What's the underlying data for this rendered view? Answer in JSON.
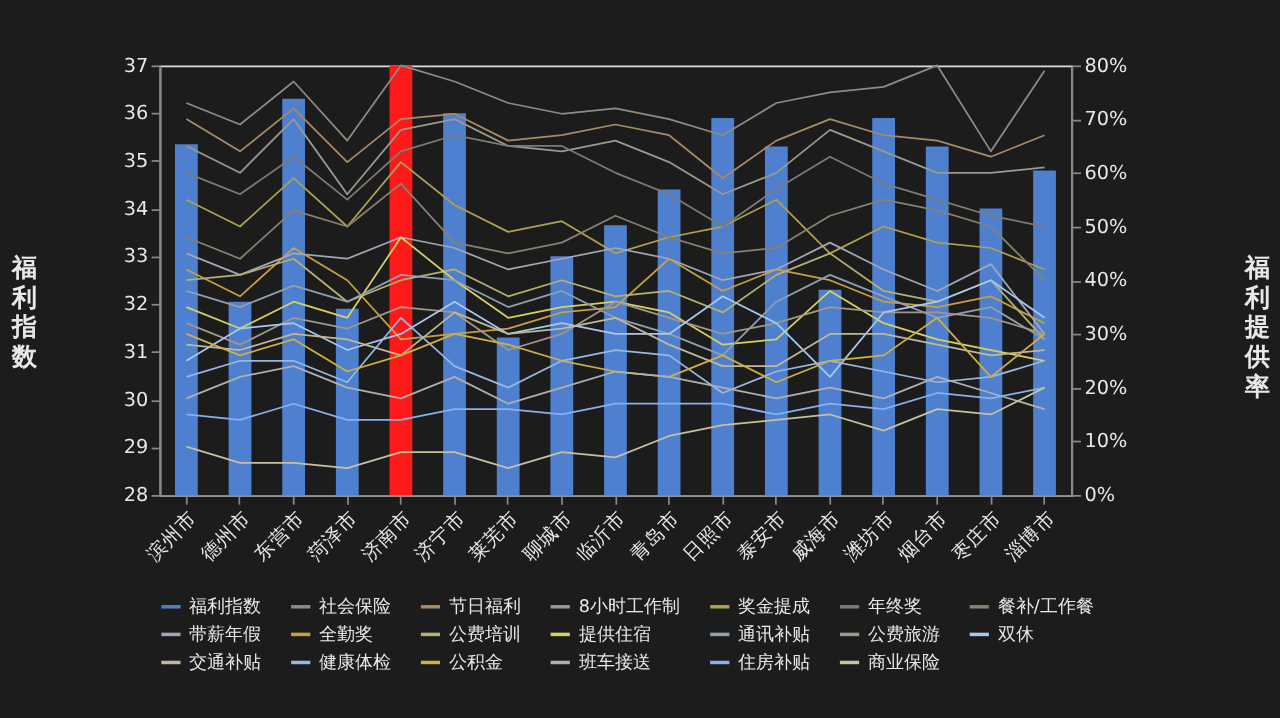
{
  "chart_data": {
    "type": "bar",
    "ylabel": "福利指数",
    "y2label": "福利提供率",
    "categories": [
      "滨州市",
      "德州市",
      "东营市",
      "菏泽市",
      "济南市",
      "济宁市",
      "莱芜市",
      "聊城市",
      "临沂市",
      "青岛市",
      "日照市",
      "泰安市",
      "威海市",
      "潍坊市",
      "烟台市",
      "枣庄市",
      "淄博市"
    ],
    "ylim": [
      28,
      37
    ],
    "yticks": [
      28,
      29,
      30,
      31,
      32,
      33,
      34,
      35,
      36,
      37
    ],
    "y2lim": [
      0,
      80
    ],
    "y2ticks": [
      {
        "value": 0,
        "label": "0%"
      },
      {
        "value": 10,
        "label": "10%"
      },
      {
        "value": 20,
        "label": "20%"
      },
      {
        "value": 30,
        "label": "30%"
      },
      {
        "value": 40,
        "label": "40%"
      },
      {
        "value": 50,
        "label": "50%"
      },
      {
        "value": 60,
        "label": "60%"
      },
      {
        "value": 70,
        "label": "70%"
      },
      {
        "value": 80,
        "label": "80%"
      }
    ],
    "legend": "bottom",
    "marker": "none",
    "line_style": "solid",
    "series": [
      {
        "name": "福利指数",
        "color": "#4f7fcf",
        "colors": [
          "#4f7fcf",
          "#4f7fcf",
          "#4f7fcf",
          "#4f7fcf",
          "#ff1a1a",
          "#4f7fcf",
          "#4f7fcf",
          "#4f7fcf",
          "#4f7fcf",
          "#4f7fcf",
          "#4f7fcf",
          "#4f7fcf",
          "#4f7fcf",
          "#4f7fcf",
          "#4f7fcf",
          "#4f7fcf",
          "#4f7fcf"
        ],
        "values": [
          35.35,
          32.05,
          36.3,
          31.9,
          37,
          36.0,
          31.3,
          33.0,
          33.65,
          34.4,
          35.9,
          35.3,
          32.3,
          35.9,
          35.3,
          34.0,
          34.8
        ]
      },
      {
        "name": "社会保险",
        "type": "line",
        "axis": "y2",
        "color": "#8c8c80",
        "values": [
          73,
          69,
          77,
          66,
          80,
          77,
          73,
          71,
          72,
          70,
          67,
          73,
          75,
          76,
          80,
          64,
          79
        ]
      },
      {
        "name": "节日福利",
        "type": "line",
        "axis": "y2",
        "color": "#a88a68",
        "values": [
          70,
          64,
          72,
          62,
          70,
          71,
          66,
          67,
          69,
          67,
          59,
          66,
          70,
          67,
          66,
          63,
          67
        ]
      },
      {
        "name": "8小时工作制",
        "type": "line",
        "axis": "y2",
        "color": "#9a9a90",
        "values": [
          65,
          60,
          70,
          56,
          68,
          70,
          65,
          64,
          66,
          62,
          56,
          60,
          68,
          64,
          60,
          60,
          61
        ]
      },
      {
        "name": "奖金提成",
        "type": "line",
        "axis": "y2",
        "color": "#b0a050",
        "values": [
          55,
          50,
          59,
          50,
          62,
          54,
          49,
          51,
          45,
          48,
          50,
          55,
          45,
          50,
          47,
          46,
          42
        ]
      },
      {
        "name": "年终奖",
        "type": "line",
        "axis": "y2",
        "color": "#7c7c74",
        "values": [
          60,
          56,
          63,
          55,
          64,
          67,
          65,
          65,
          60,
          56,
          50,
          57,
          63,
          58,
          55,
          52,
          50
        ]
      },
      {
        "name": "餐补/工作餐",
        "type": "line",
        "axis": "y2",
        "color": "#8a8070",
        "values": [
          48,
          44,
          53,
          50,
          58,
          47,
          45,
          47,
          52,
          48,
          45,
          46,
          52,
          55,
          53,
          50,
          40
        ]
      },
      {
        "name": "带薪年假",
        "type": "line",
        "axis": "y2",
        "color": "#a0a8b8",
        "values": [
          45,
          41,
          45,
          44,
          48,
          46,
          42,
          44,
          46,
          44,
          40,
          42,
          47,
          42,
          38,
          43,
          30
        ]
      },
      {
        "name": "全勤奖",
        "type": "line",
        "axis": "y2",
        "color": "#c8a040",
        "values": [
          42,
          37,
          46,
          40,
          29,
          30,
          31,
          34,
          35,
          44,
          38,
          42,
          40,
          36,
          35,
          37,
          32
        ]
      },
      {
        "name": "公费培训",
        "type": "line",
        "axis": "y2",
        "color": "#b8b070",
        "values": [
          40,
          41,
          44,
          36,
          40,
          42,
          37,
          40,
          37,
          38,
          34,
          41,
          45,
          38,
          36,
          40,
          29
        ]
      },
      {
        "name": "提供住宿",
        "type": "line",
        "axis": "y2",
        "color": "#d8d060",
        "values": [
          35,
          31,
          36,
          33,
          48,
          40,
          33,
          35,
          36,
          34,
          28,
          29,
          38,
          32,
          29,
          27,
          25
        ]
      },
      {
        "name": "通讯补贴",
        "type": "line",
        "axis": "y2",
        "color": "#90a0b0",
        "values": [
          38,
          35,
          39,
          36,
          41,
          40,
          35,
          38,
          33,
          30,
          26,
          36,
          41,
          37,
          33,
          35,
          29
        ]
      },
      {
        "name": "公费旅游",
        "type": "line",
        "axis": "y2",
        "color": "#a09888",
        "values": [
          32,
          28,
          33,
          31,
          35,
          34,
          27,
          30,
          36,
          33,
          30,
          32,
          35,
          34,
          34,
          33,
          30
        ]
      },
      {
        "name": "双休",
        "type": "line",
        "axis": "y2",
        "color": "#a8c8f0",
        "values": [
          25,
          31,
          32,
          27,
          30,
          36,
          30,
          32,
          30,
          30,
          37,
          32,
          22,
          34,
          36,
          40,
          33
        ]
      },
      {
        "name": "交通补贴",
        "type": "line",
        "axis": "y2",
        "color": "#c0b898",
        "values": [
          28,
          27,
          30,
          29,
          26,
          34,
          30,
          31,
          33,
          28,
          24,
          24,
          30,
          30,
          28,
          26,
          27
        ]
      },
      {
        "name": "健康体检",
        "type": "line",
        "axis": "y2",
        "color": "#98b8e0",
        "values": [
          22,
          25,
          25,
          21,
          33,
          24,
          20,
          25,
          27,
          26,
          19,
          23,
          25,
          23,
          21,
          22,
          25
        ]
      },
      {
        "name": "公积金",
        "type": "line",
        "axis": "y2",
        "color": "#d0b040",
        "values": [
          30,
          26,
          29,
          23,
          26,
          30,
          28,
          25,
          23,
          22,
          26,
          21,
          25,
          26,
          33,
          22,
          30
        ]
      },
      {
        "name": "班车接送",
        "type": "line",
        "axis": "y2",
        "color": "#b0b0b0",
        "values": [
          18,
          22,
          24,
          20,
          18,
          22,
          17,
          20,
          23,
          22,
          20,
          18,
          20,
          18,
          22,
          19,
          16
        ]
      },
      {
        "name": "住房补贴",
        "type": "line",
        "axis": "y2",
        "color": "#88b0f0",
        "values": [
          15,
          14,
          17,
          14,
          14,
          16,
          16,
          15,
          17,
          17,
          17,
          15,
          17,
          16,
          19,
          18,
          20
        ]
      },
      {
        "name": "商业保险",
        "type": "line",
        "axis": "y2",
        "color": "#c8c0a0",
        "values": [
          9,
          6,
          6,
          5,
          8,
          8,
          5,
          8,
          7,
          11,
          13,
          14,
          15,
          12,
          16,
          15,
          20
        ]
      }
    ]
  }
}
